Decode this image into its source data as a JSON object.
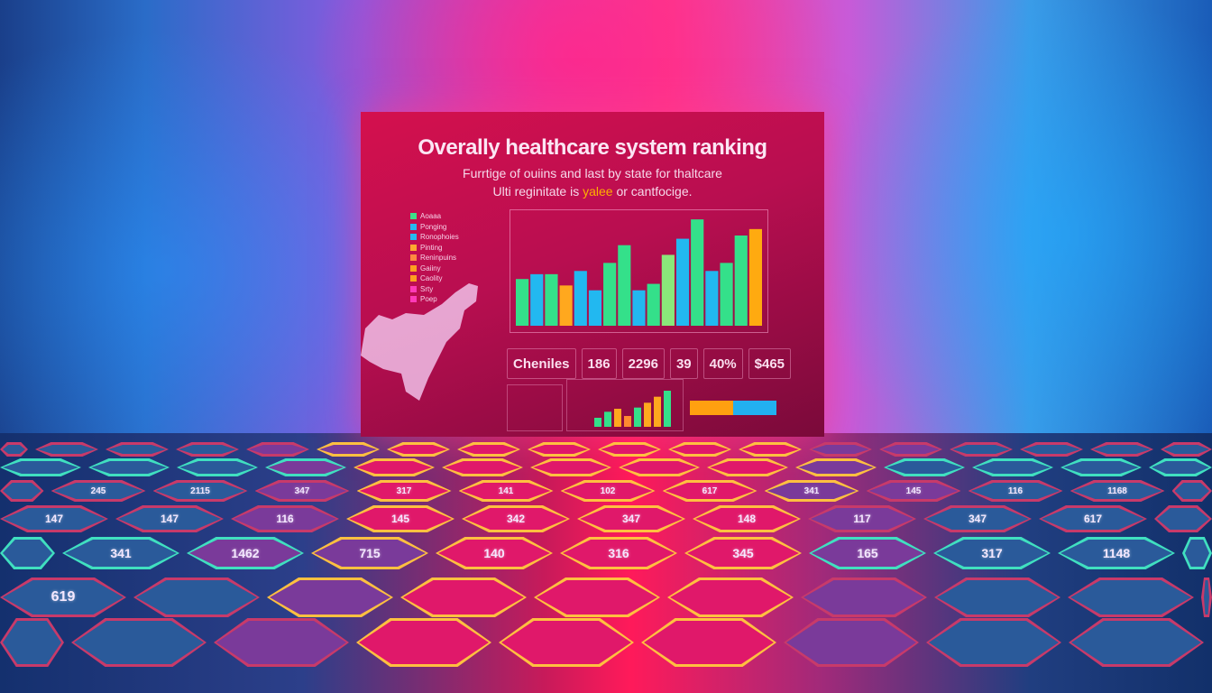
{
  "board": {
    "title": "Overally healthcare system ranking",
    "subtitle_line1": "Furrtige of ouiins and last by state for thaltcare",
    "subtitle_line2_a": "Ulti reginitate is ",
    "subtitle_line2_highlight": "yalee",
    "subtitle_line2_b": " or cantfocige.",
    "legend": [
      {
        "label": "Aoaaa",
        "color": "#3ee08a"
      },
      {
        "label": "Ponging",
        "color": "#28b8f0"
      },
      {
        "label": "Ronophoies",
        "color": "#28b8f0"
      },
      {
        "label": "Pinting",
        "color": "#ffa830"
      },
      {
        "label": "Reninpuins",
        "color": "#ff8a40"
      },
      {
        "label": "Gaiiny",
        "color": "#ffa020"
      },
      {
        "label": "Caolity",
        "color": "#ffa020"
      },
      {
        "label": "Srty",
        "color": "#ff3ab8"
      },
      {
        "label": "Poep",
        "color": "#ff3ab8"
      }
    ],
    "stats": [
      "Cheniles",
      "186",
      "2296",
      "39",
      "40%",
      "$465"
    ]
  },
  "chart_data": {
    "type": "bar",
    "title": "",
    "values": [
      2.9,
      3.2,
      3.2,
      2.5,
      3.4,
      2.2,
      3.9,
      5.0,
      2.2,
      2.6,
      4.4,
      5.4,
      6.6,
      3.4,
      3.9,
      5.6,
      6.0
    ],
    "colors": [
      "#34e08a",
      "#22b8f0",
      "#34e08a",
      "#ffa81e",
      "#22b8f0",
      "#22b8f0",
      "#34e08a",
      "#34e08a",
      "#22b8f0",
      "#34e08a",
      "#8ae87a",
      "#22b8f0",
      "#34e08a",
      "#22b8f0",
      "#34e08a",
      "#34e08a",
      "#ffaa10"
    ],
    "ylim": [
      0,
      7
    ],
    "grid": false
  },
  "mini_chart": {
    "values": [
      1.5,
      2.5,
      3,
      1.8,
      3.2,
      4,
      5,
      6
    ],
    "colors": [
      "#34e08a",
      "#34e08a",
      "#ffa81e",
      "#ff8a30",
      "#34e08a",
      "#ffa81e",
      "#ffa81e",
      "#34e08a"
    ]
  },
  "tiles": [
    "245",
    "2115",
    "347",
    "317",
    "141",
    "102",
    "617",
    "341",
    "145",
    "116",
    "1168",
    "147",
    "147",
    "116",
    "145",
    "342",
    "347",
    "148",
    "117",
    "347",
    "617",
    "341",
    "1462",
    "715",
    "140",
    "316",
    "345",
    "165",
    "317",
    "1148",
    "619"
  ]
}
